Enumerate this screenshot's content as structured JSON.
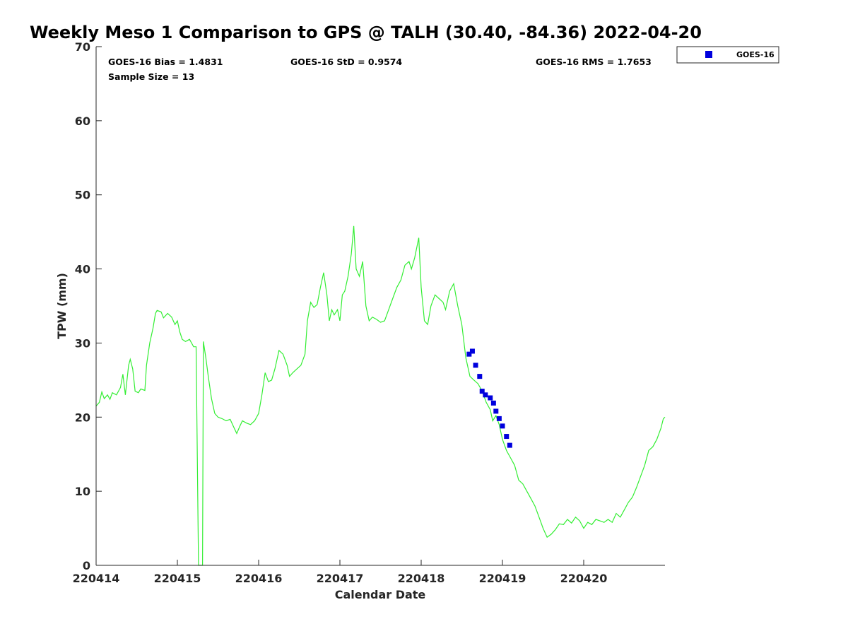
{
  "chart_data": {
    "type": "line",
    "title": "Weekly Meso 1 Comparison to GPS @ TALH (30.40, -84.36) 2022-04-20",
    "xlabel": "Calendar Date",
    "ylabel": "TPW (mm)",
    "xlim": [
      220414,
      220421.0
    ],
    "ylim": [
      0,
      70
    ],
    "x_ticks": [
      220414,
      220415,
      220416,
      220417,
      220418,
      220419,
      220420
    ],
    "x_tick_labels": [
      "220414",
      "220415",
      "220416",
      "220417",
      "220418",
      "220419",
      "220420"
    ],
    "y_ticks": [
      0,
      10,
      20,
      30,
      40,
      50,
      60,
      70
    ],
    "y_tick_labels": [
      "0",
      "10",
      "20",
      "30",
      "40",
      "50",
      "60",
      "70"
    ],
    "grid": false,
    "stats": {
      "bias": "GOES-16 Bias = 1.4831",
      "std": "GOES-16 StD = 0.9574",
      "rms": "GOES-16 RMS = 1.7653",
      "sample": "Sample Size = 13"
    },
    "legend": {
      "placement": "top-right-outside",
      "entries": [
        "GOES-16"
      ]
    },
    "series": [
      {
        "style": "line",
        "color": "#33ee33",
        "points": [
          [
            220414.0,
            21.5
          ],
          [
            220414.04,
            22.0
          ],
          [
            220414.07,
            23.4
          ],
          [
            220414.1,
            22.5
          ],
          [
            220414.14,
            23.0
          ],
          [
            220414.17,
            22.4
          ],
          [
            220414.2,
            23.3
          ],
          [
            220414.25,
            23.0
          ],
          [
            220414.3,
            24.0
          ],
          [
            220414.33,
            25.8
          ],
          [
            220414.36,
            23.0
          ],
          [
            220414.4,
            27.0
          ],
          [
            220414.42,
            27.8
          ],
          [
            220414.45,
            26.5
          ],
          [
            220414.48,
            23.5
          ],
          [
            220414.52,
            23.3
          ],
          [
            220414.55,
            23.8
          ],
          [
            220414.6,
            23.6
          ],
          [
            220414.62,
            27.0
          ],
          [
            220414.66,
            30.0
          ],
          [
            220414.7,
            32.0
          ],
          [
            220414.73,
            34.0
          ],
          [
            220414.75,
            34.4
          ],
          [
            220414.8,
            34.2
          ],
          [
            220414.83,
            33.4
          ],
          [
            220414.88,
            34.0
          ],
          [
            220414.93,
            33.5
          ],
          [
            220414.97,
            32.5
          ],
          [
            220415.0,
            33.0
          ],
          [
            220415.03,
            31.5
          ],
          [
            220415.06,
            30.5
          ],
          [
            220415.1,
            30.2
          ],
          [
            220415.15,
            30.5
          ],
          [
            220415.2,
            29.5
          ],
          [
            220415.23,
            29.5
          ],
          [
            220415.26,
            0.0
          ],
          [
            220415.31,
            0.0
          ],
          [
            220415.32,
            30.2
          ],
          [
            220415.35,
            28.0
          ],
          [
            220415.38,
            25.5
          ],
          [
            220415.42,
            22.5
          ],
          [
            220415.46,
            20.5
          ],
          [
            220415.5,
            20.0
          ],
          [
            220415.55,
            19.8
          ],
          [
            220415.6,
            19.5
          ],
          [
            220415.65,
            19.7
          ],
          [
            220415.7,
            18.5
          ],
          [
            220415.73,
            17.8
          ],
          [
            220415.77,
            18.8
          ],
          [
            220415.8,
            19.5
          ],
          [
            220415.85,
            19.2
          ],
          [
            220415.9,
            19.0
          ],
          [
            220415.95,
            19.5
          ],
          [
            220416.0,
            20.5
          ],
          [
            220416.04,
            23.0
          ],
          [
            220416.08,
            26.0
          ],
          [
            220416.12,
            24.8
          ],
          [
            220416.16,
            25.0
          ],
          [
            220416.2,
            26.5
          ],
          [
            220416.25,
            29.0
          ],
          [
            220416.3,
            28.5
          ],
          [
            220416.35,
            27.0
          ],
          [
            220416.38,
            25.5
          ],
          [
            220416.42,
            26.0
          ],
          [
            220416.47,
            26.5
          ],
          [
            220416.52,
            27.0
          ],
          [
            220416.57,
            28.5
          ],
          [
            220416.6,
            33.0
          ],
          [
            220416.64,
            35.5
          ],
          [
            220416.68,
            34.8
          ],
          [
            220416.72,
            35.2
          ],
          [
            220416.76,
            37.5
          ],
          [
            220416.8,
            39.5
          ],
          [
            220416.84,
            36.5
          ],
          [
            220416.87,
            33.0
          ],
          [
            220416.9,
            34.5
          ],
          [
            220416.93,
            33.8
          ],
          [
            220416.97,
            34.5
          ],
          [
            220417.0,
            33.0
          ],
          [
            220417.03,
            36.5
          ],
          [
            220417.06,
            37.0
          ],
          [
            220417.1,
            39.0
          ],
          [
            220417.14,
            42.0
          ],
          [
            220417.17,
            45.8
          ],
          [
            220417.2,
            40.0
          ],
          [
            220417.24,
            39.0
          ],
          [
            220417.28,
            41.0
          ],
          [
            220417.32,
            35.0
          ],
          [
            220417.36,
            33.0
          ],
          [
            220417.4,
            33.5
          ],
          [
            220417.45,
            33.2
          ],
          [
            220417.5,
            32.8
          ],
          [
            220417.55,
            33.0
          ],
          [
            220417.6,
            34.5
          ],
          [
            220417.65,
            36.0
          ],
          [
            220417.7,
            37.5
          ],
          [
            220417.75,
            38.5
          ],
          [
            220417.8,
            40.5
          ],
          [
            220417.85,
            41.0
          ],
          [
            220417.88,
            40.0
          ],
          [
            220417.92,
            41.5
          ],
          [
            220417.97,
            44.2
          ],
          [
            220418.0,
            37.5
          ],
          [
            220418.04,
            33.0
          ],
          [
            220418.08,
            32.5
          ],
          [
            220418.12,
            35.0
          ],
          [
            220418.17,
            36.5
          ],
          [
            220418.22,
            36.0
          ],
          [
            220418.27,
            35.5
          ],
          [
            220418.3,
            34.5
          ],
          [
            220418.35,
            37.0
          ],
          [
            220418.4,
            38.0
          ],
          [
            220418.45,
            35.0
          ],
          [
            220418.5,
            32.5
          ],
          [
            220418.55,
            28.0
          ],
          [
            220418.6,
            25.5
          ],
          [
            220418.65,
            25.0
          ],
          [
            220418.7,
            24.5
          ],
          [
            220418.75,
            23.5
          ],
          [
            220418.8,
            22.0
          ],
          [
            220418.85,
            21.0
          ],
          [
            220418.88,
            19.5
          ],
          [
            220418.92,
            20.2
          ],
          [
            220418.96,
            19.0
          ],
          [
            220419.0,
            17.0
          ],
          [
            220419.05,
            15.5
          ],
          [
            220419.1,
            14.5
          ],
          [
            220419.15,
            13.5
          ],
          [
            220419.2,
            11.5
          ],
          [
            220419.25,
            11.0
          ],
          [
            220419.3,
            10.0
          ],
          [
            220419.35,
            9.0
          ],
          [
            220419.4,
            8.0
          ],
          [
            220419.45,
            6.5
          ],
          [
            220419.5,
            5.0
          ],
          [
            220419.55,
            3.8
          ],
          [
            220419.6,
            4.2
          ],
          [
            220419.65,
            4.8
          ],
          [
            220419.7,
            5.6
          ],
          [
            220419.75,
            5.5
          ],
          [
            220419.8,
            6.2
          ],
          [
            220419.85,
            5.7
          ],
          [
            220419.9,
            6.5
          ],
          [
            220419.95,
            6.0
          ],
          [
            220420.0,
            5.0
          ],
          [
            220420.05,
            5.8
          ],
          [
            220420.1,
            5.5
          ],
          [
            220420.15,
            6.2
          ],
          [
            220420.2,
            6.0
          ],
          [
            220420.25,
            5.8
          ],
          [
            220420.3,
            6.2
          ],
          [
            220420.35,
            5.8
          ],
          [
            220420.4,
            7.0
          ],
          [
            220420.45,
            6.5
          ],
          [
            220420.5,
            7.5
          ],
          [
            220420.55,
            8.5
          ],
          [
            220420.6,
            9.2
          ],
          [
            220420.65,
            10.5
          ],
          [
            220420.7,
            12.0
          ],
          [
            220420.75,
            13.5
          ],
          [
            220420.8,
            15.5
          ],
          [
            220420.85,
            16.0
          ],
          [
            220420.9,
            17.0
          ],
          [
            220420.95,
            18.5
          ],
          [
            220420.98,
            19.8
          ],
          [
            220421.0,
            20.0
          ]
        ]
      },
      {
        "name": "GOES-16",
        "style": "scatter",
        "color": "#0000dd",
        "points": [
          [
            220418.59,
            28.5
          ],
          [
            220418.63,
            28.9
          ],
          [
            220418.67,
            27.0
          ],
          [
            220418.72,
            25.5
          ],
          [
            220418.75,
            23.5
          ],
          [
            220418.79,
            23.0
          ],
          [
            220418.85,
            22.6
          ],
          [
            220418.89,
            21.9
          ],
          [
            220418.92,
            20.8
          ],
          [
            220418.96,
            19.8
          ],
          [
            220419.0,
            18.8
          ],
          [
            220419.05,
            17.4
          ],
          [
            220419.09,
            16.2
          ]
        ]
      }
    ]
  }
}
